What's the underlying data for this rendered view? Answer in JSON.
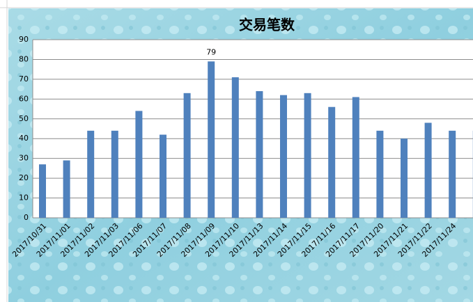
{
  "chart_data": {
    "type": "bar",
    "title": "交易笔数",
    "categories": [
      "2017/10/31",
      "2017/11/01",
      "2017/11/02",
      "2017/11/03",
      "2017/11/06",
      "2017/11/07",
      "2017/11/08",
      "2017/11/09",
      "2017/11/10",
      "2017/11/13",
      "2017/11/14",
      "2017/11/15",
      "2017/11/16",
      "2017/11/17",
      "2017/11/20",
      "2017/11/21",
      "2017/11/22",
      "2017/11/24",
      null
    ],
    "values": [
      27,
      29,
      44,
      44,
      54,
      42,
      63,
      79,
      71,
      64,
      62,
      63,
      56,
      61,
      44,
      40,
      48,
      44,
      44
    ],
    "value_labels": [
      null,
      null,
      null,
      null,
      null,
      null,
      null,
      "79",
      null,
      null,
      null,
      null,
      null,
      null,
      null,
      null,
      null,
      null,
      null
    ],
    "color": "#4f81bd",
    "ylim": [
      0,
      90
    ],
    "yticks": [
      0,
      10,
      20,
      30,
      40,
      50,
      60,
      70,
      80,
      90
    ],
    "grid": true
  }
}
